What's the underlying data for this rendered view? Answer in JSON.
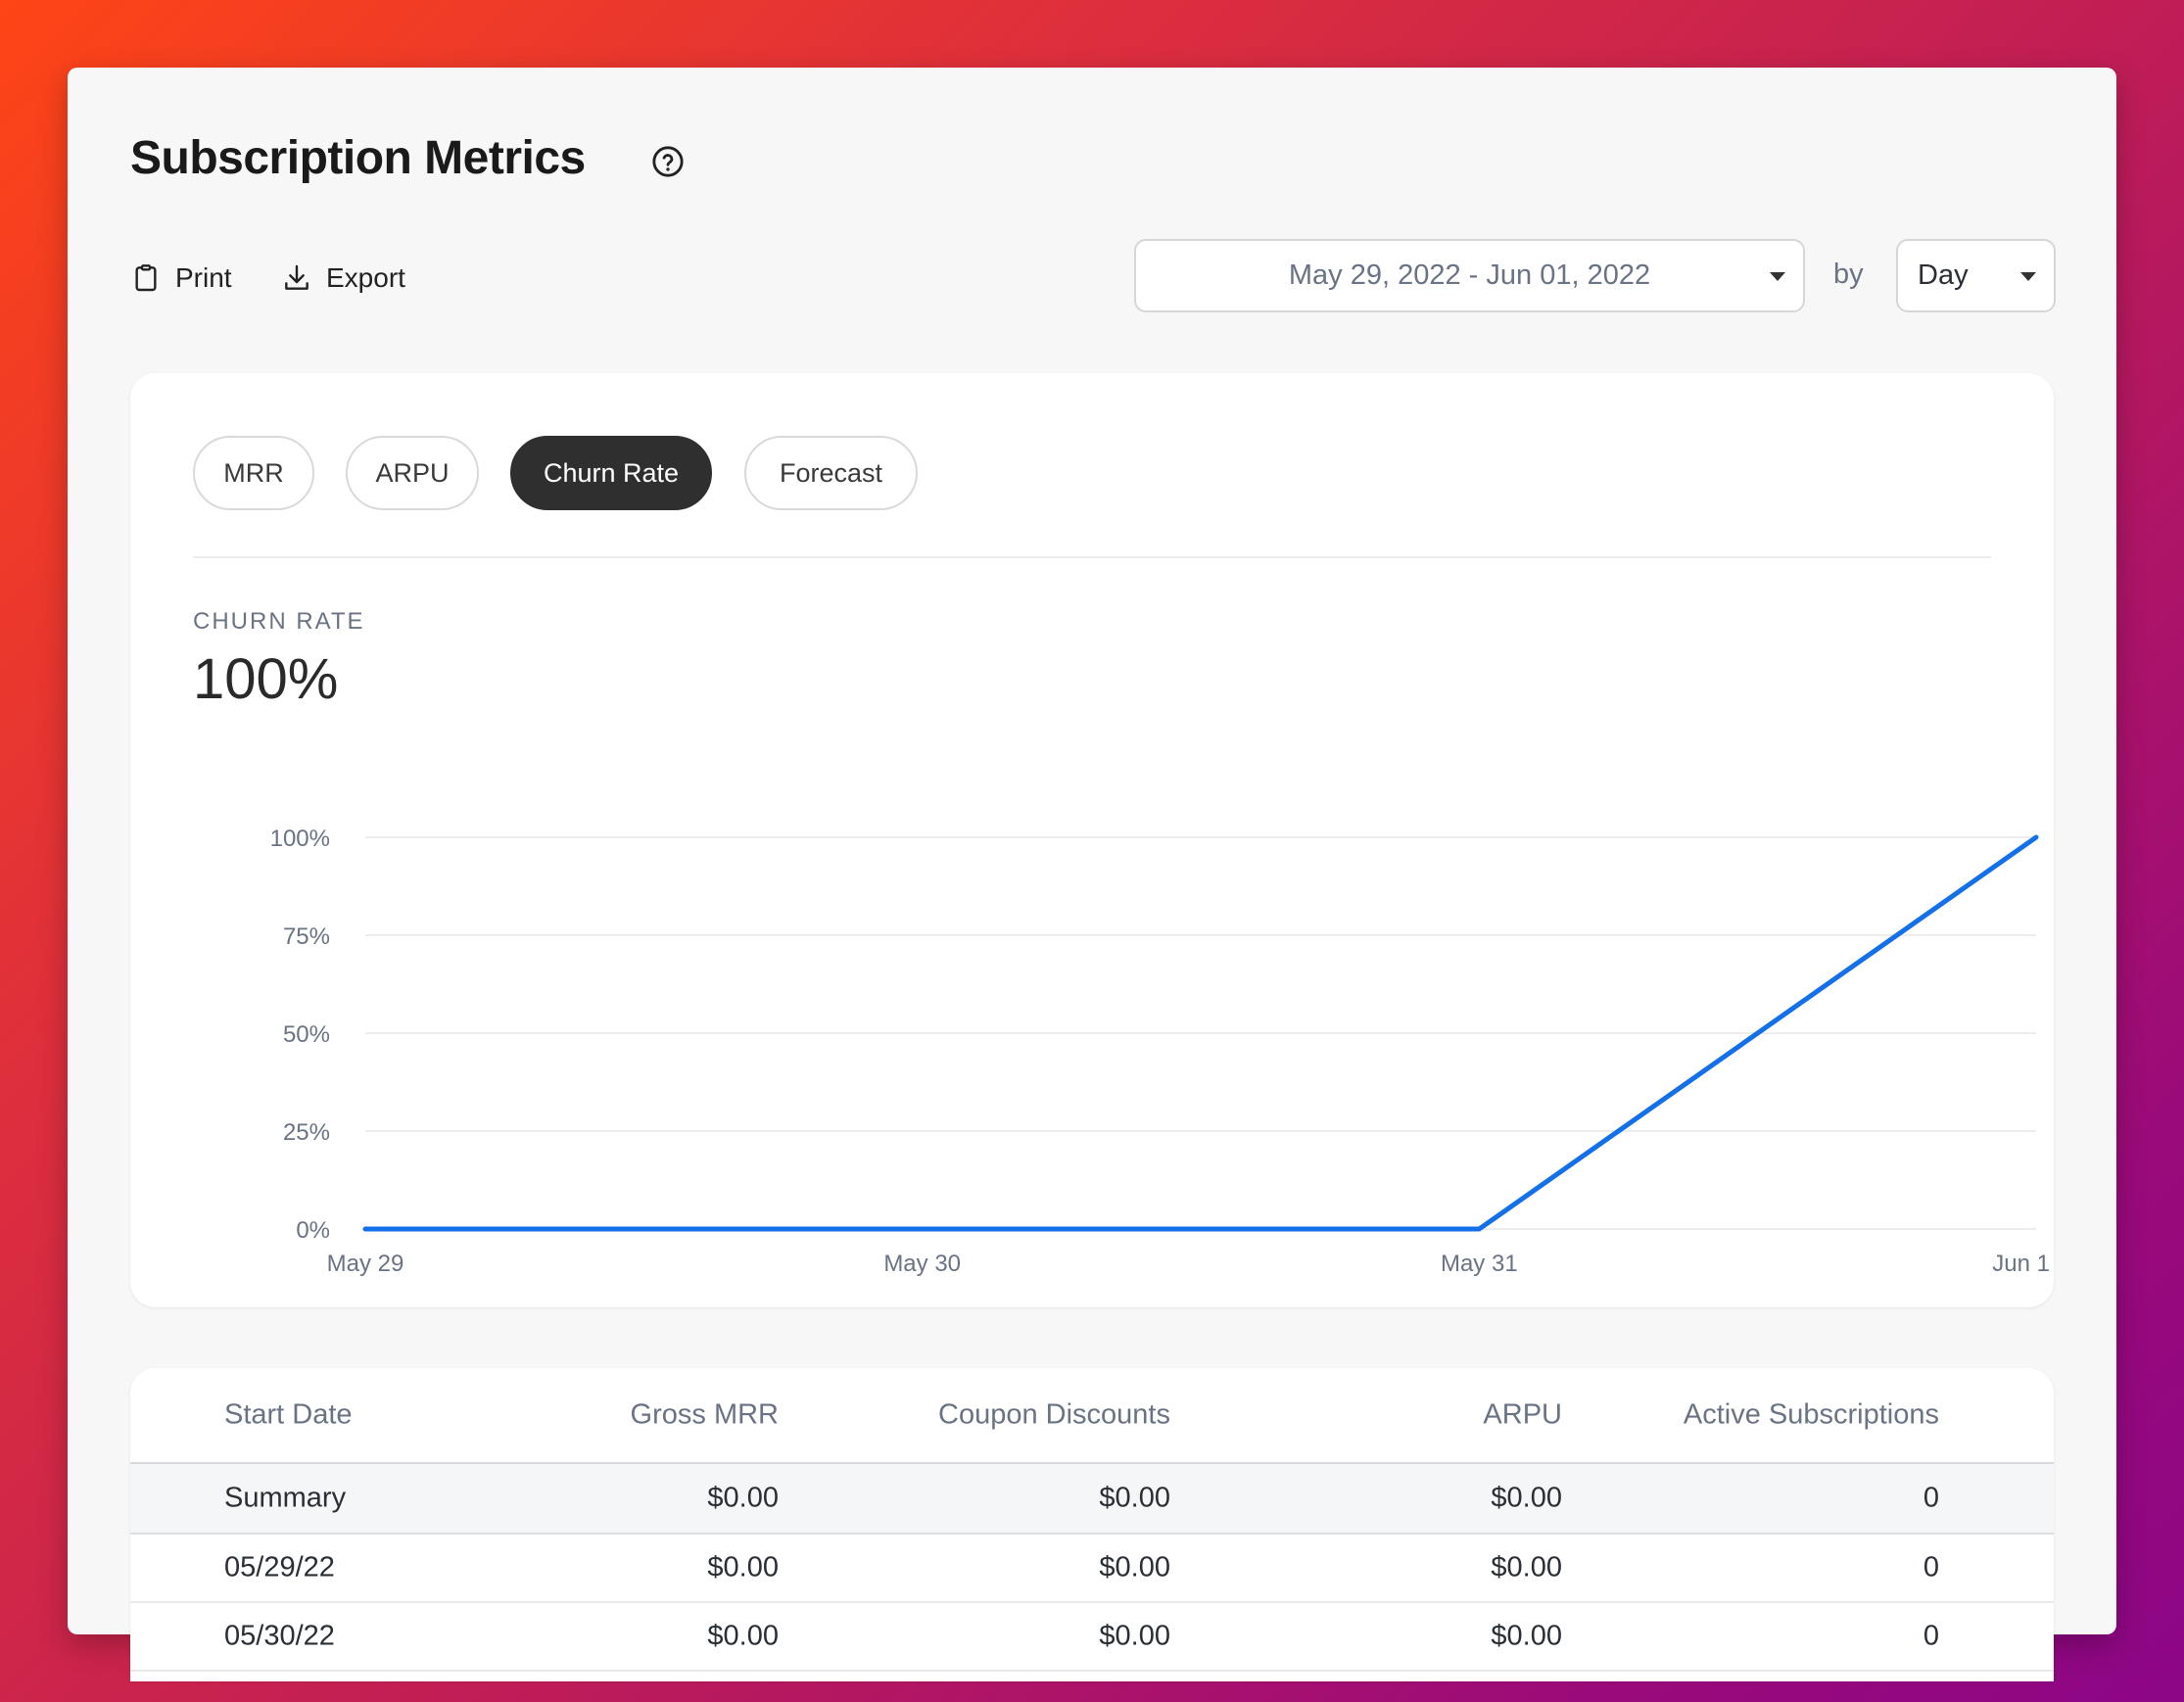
{
  "header": {
    "title": "Subscription Metrics",
    "print_label": "Print",
    "export_label": "Export"
  },
  "filters": {
    "date_range": "May 29, 2022 - Jun 01, 2022",
    "by_label": "by",
    "granularity": "Day"
  },
  "tabs": [
    {
      "label": "MRR",
      "active": false
    },
    {
      "label": "ARPU",
      "active": false
    },
    {
      "label": "Churn Rate",
      "active": true
    },
    {
      "label": "Forecast",
      "active": false
    }
  ],
  "metric": {
    "label": "CHURN RATE",
    "value": "100%"
  },
  "chart_data": {
    "type": "line",
    "title": "",
    "xlabel": "",
    "ylabel": "",
    "x": [
      "May 29",
      "May 30",
      "May 31",
      "Jun 1"
    ],
    "series": [
      {
        "values": [
          0,
          0,
          0,
          100
        ],
        "color": "#1370e8"
      }
    ],
    "y_ticks": [
      "0%",
      "25%",
      "50%",
      "75%",
      "100%"
    ],
    "ylim": [
      0,
      100
    ],
    "grid": true
  },
  "table": {
    "columns": [
      "Start Date",
      "Gross MRR",
      "Coupon Discounts",
      "ARPU",
      "Active Subscriptions"
    ],
    "summary": [
      "Summary",
      "$0.00",
      "$0.00",
      "$0.00",
      "0"
    ],
    "rows": [
      [
        "05/29/22",
        "$0.00",
        "$0.00",
        "$0.00",
        "0"
      ],
      [
        "05/30/22",
        "$0.00",
        "$0.00",
        "$0.00",
        "0"
      ]
    ]
  },
  "colors": {
    "accent": "#1370e8",
    "active_tab": "#2f2f2f"
  }
}
